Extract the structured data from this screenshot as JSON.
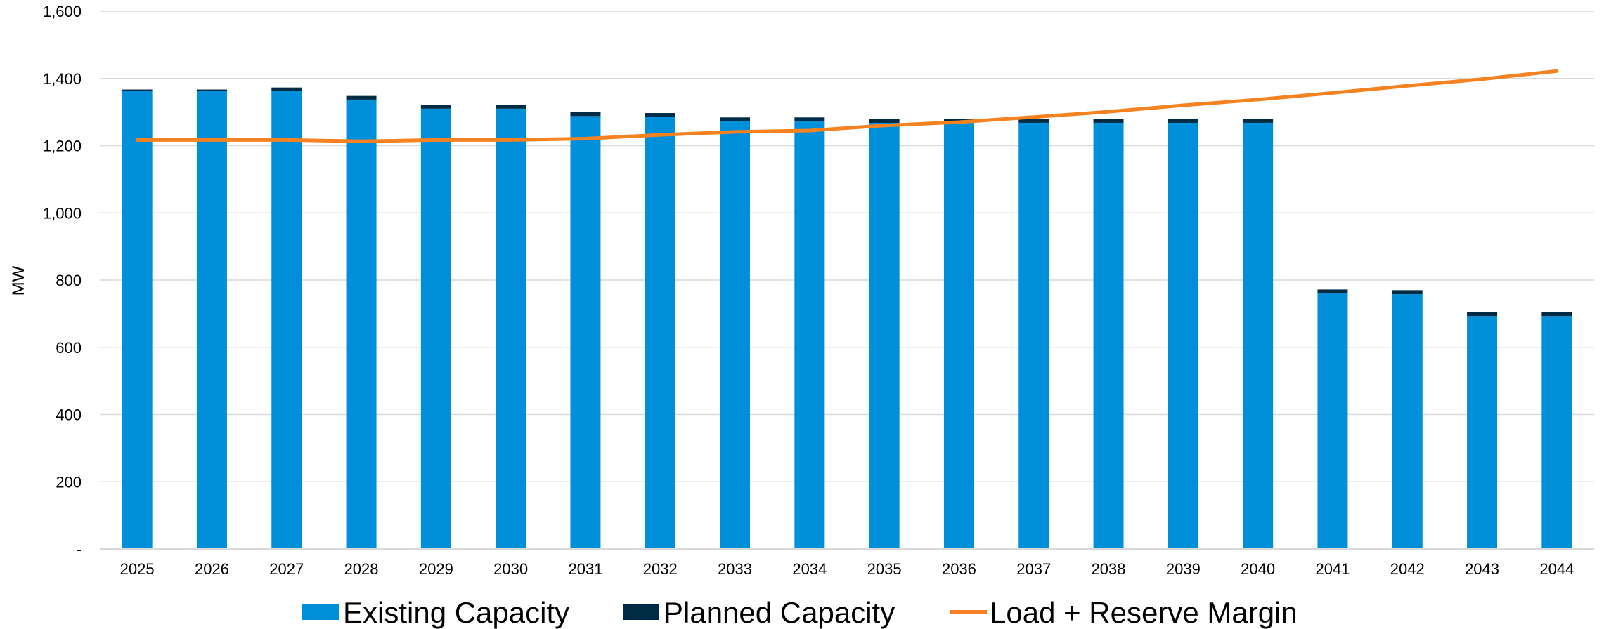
{
  "chart_data": {
    "type": "bar",
    "stacked": true,
    "title": "",
    "xlabel": "",
    "ylabel": "MW",
    "ylim": [
      0,
      1600
    ],
    "yticks": [
      0,
      200,
      400,
      600,
      800,
      1000,
      1200,
      1400,
      1600
    ],
    "ytick_labels": [
      "-",
      "200",
      "400",
      "600",
      "800",
      "1,000",
      "1,200",
      "1,400",
      "1,600"
    ],
    "grid": "horizontal",
    "legend_position": "bottom",
    "categories": [
      "2025",
      "2026",
      "2027",
      "2028",
      "2029",
      "2030",
      "2031",
      "2032",
      "2033",
      "2034",
      "2035",
      "2036",
      "2037",
      "2038",
      "2039",
      "2040",
      "2041",
      "2042",
      "2043",
      "2044"
    ],
    "series": [
      {
        "name": "Existing Capacity",
        "kind": "bar",
        "color": "#0090DA",
        "values": [
          1362,
          1362,
          1362,
          1337,
          1310,
          1310,
          1288,
          1285,
          1272,
          1272,
          1268,
          1268,
          1268,
          1268,
          1268,
          1268,
          760,
          758,
          693,
          693
        ]
      },
      {
        "name": "Planned Capacity",
        "kind": "bar",
        "color": "#002B45",
        "values": [
          5,
          5,
          11,
          11,
          12,
          12,
          12,
          12,
          12,
          12,
          12,
          12,
          12,
          12,
          12,
          12,
          12,
          12,
          12,
          12
        ]
      },
      {
        "name": "Load + Reserve Margin",
        "kind": "line",
        "color": "#F58220",
        "values": [
          1217,
          1217,
          1217,
          1213,
          1217,
          1217,
          1221,
          1232,
          1241,
          1245,
          1260,
          1270,
          1285,
          1301,
          1320,
          1337,
          1357,
          1378,
          1398,
          1422
        ]
      }
    ]
  }
}
